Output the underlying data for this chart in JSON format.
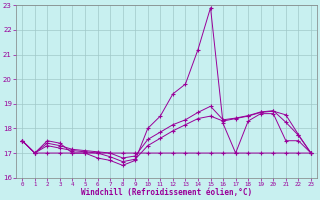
{
  "xlabel": "Windchill (Refroidissement éolien,°C)",
  "ylabel": "",
  "background_color": "#c8f0f0",
  "grid_color": "#a0c8c8",
  "line_color": "#990099",
  "xlim": [
    -0.5,
    23.5
  ],
  "ylim": [
    16,
    23
  ],
  "yticks": [
    16,
    17,
    18,
    19,
    20,
    21,
    22,
    23
  ],
  "xticks": [
    0,
    1,
    2,
    3,
    4,
    5,
    6,
    7,
    8,
    9,
    10,
    11,
    12,
    13,
    14,
    15,
    16,
    17,
    18,
    19,
    20,
    21,
    22,
    23
  ],
  "series1_x": [
    0,
    1,
    2,
    3,
    4,
    5,
    6,
    7,
    8,
    9,
    10,
    11,
    12,
    13,
    14,
    15,
    16,
    17,
    18,
    19,
    20,
    21,
    22,
    23
  ],
  "series1_y": [
    17.5,
    17.0,
    17.5,
    17.4,
    17.0,
    17.0,
    16.8,
    16.7,
    16.5,
    16.7,
    18.0,
    18.5,
    19.4,
    19.8,
    21.2,
    22.9,
    18.2,
    17.0,
    18.3,
    18.6,
    18.6,
    17.5,
    17.5,
    17.0
  ],
  "series2_x": [
    0,
    1,
    2,
    3,
    4,
    5,
    6,
    7,
    8,
    9,
    10,
    11,
    12,
    13,
    14,
    15,
    16,
    17,
    18,
    19,
    20,
    21,
    22,
    23
  ],
  "series2_y": [
    17.5,
    17.0,
    17.0,
    17.0,
    17.0,
    17.0,
    17.0,
    17.0,
    17.0,
    17.0,
    17.0,
    17.0,
    17.0,
    17.0,
    17.0,
    17.0,
    17.0,
    17.0,
    17.0,
    17.0,
    17.0,
    17.0,
    17.0,
    17.0
  ],
  "series3_x": [
    0,
    1,
    2,
    3,
    4,
    5,
    6,
    7,
    8,
    9,
    10,
    11,
    12,
    13,
    14,
    15,
    16,
    17,
    18,
    19,
    20,
    21,
    22,
    23
  ],
  "series3_y": [
    17.5,
    17.0,
    17.3,
    17.2,
    17.1,
    17.05,
    17.0,
    16.85,
    16.65,
    16.75,
    17.3,
    17.6,
    17.9,
    18.15,
    18.4,
    18.5,
    18.3,
    18.4,
    18.5,
    18.65,
    18.7,
    18.55,
    17.75,
    17.0
  ],
  "series4_x": [
    0,
    1,
    2,
    3,
    4,
    5,
    6,
    7,
    8,
    9,
    10,
    11,
    12,
    13,
    14,
    15,
    16,
    17,
    18,
    19,
    20,
    21,
    22,
    23
  ],
  "series4_y": [
    17.5,
    17.0,
    17.4,
    17.3,
    17.15,
    17.1,
    17.05,
    17.0,
    16.8,
    16.88,
    17.55,
    17.85,
    18.15,
    18.35,
    18.65,
    18.9,
    18.35,
    18.42,
    18.52,
    18.67,
    18.72,
    18.25,
    17.72,
    17.0
  ]
}
